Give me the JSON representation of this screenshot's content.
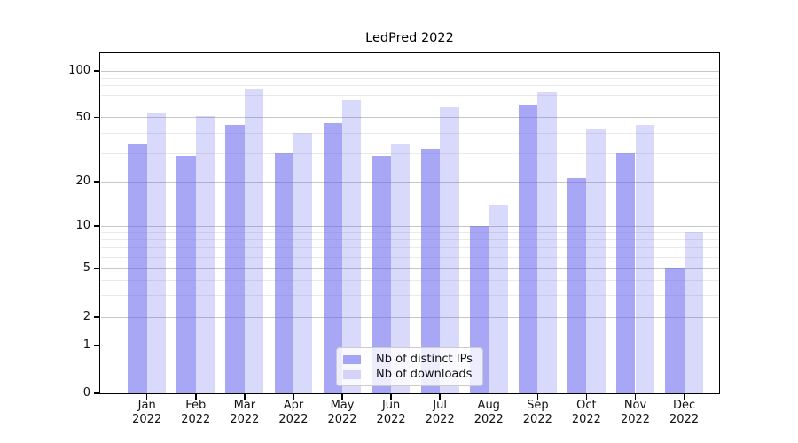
{
  "chart_data": {
    "type": "bar",
    "title": "LedPred 2022",
    "categories": [
      "Jan",
      "Feb",
      "Mar",
      "Apr",
      "May",
      "Jun",
      "Jul",
      "Aug",
      "Sep",
      "Oct",
      "Nov",
      "Dec"
    ],
    "xtick_year": "2022",
    "series": [
      {
        "name": "Nb of distinct IPs",
        "color": "#6464f0",
        "alpha": 0.57,
        "composited_color": "#a6a6f4",
        "values": [
          34,
          29,
          45,
          30,
          46,
          29,
          32,
          10,
          61,
          21,
          30,
          5
        ]
      },
      {
        "name": "Nb of downloads",
        "color": "#6464f0",
        "alpha": 0.245,
        "composited_color": "#d9d9fb",
        "values": [
          54,
          51,
          77,
          40,
          65,
          34,
          58,
          14,
          73,
          42,
          45,
          9
        ]
      }
    ],
    "yscale": "log-like (symlog: linear below 1, log above)",
    "ylim": [
      0,
      130
    ],
    "yticks": [
      0,
      1,
      2,
      5,
      10,
      20,
      50,
      100
    ],
    "minor_gridlines": [
      3,
      4,
      6,
      7,
      8,
      9,
      30,
      40,
      60,
      70,
      80,
      90
    ],
    "grid": true,
    "legend_position": "lower center",
    "colors": {
      "major_grid": "#c6c6c6",
      "minor_grid": "#eaeaea",
      "spine": "#000000",
      "background": "#ffffff"
    }
  }
}
